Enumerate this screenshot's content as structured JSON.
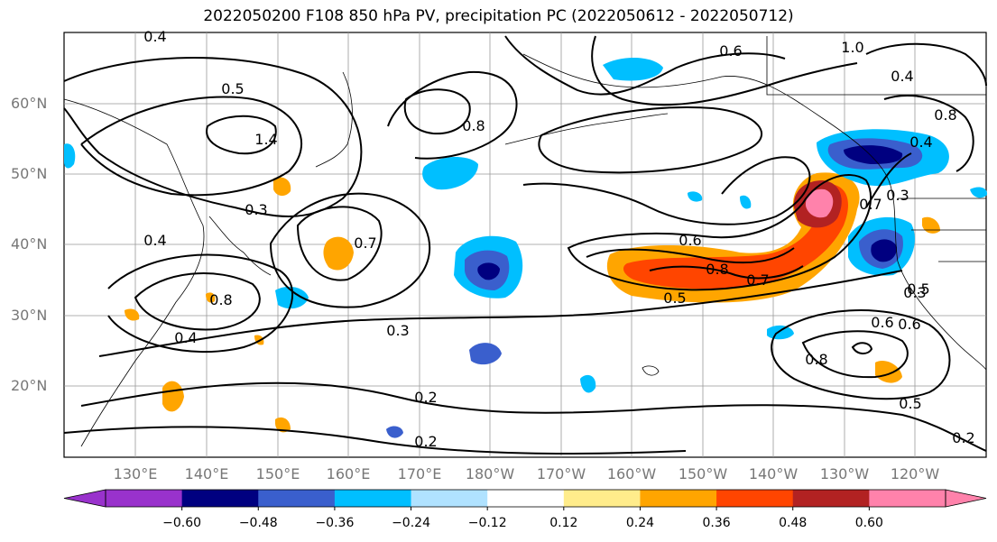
{
  "title": "2022050200 F108 850 hPa PV, precipitation PC (2022050612 - 2022050712)",
  "map": {
    "lat_labels": [
      "60°N",
      "50°N",
      "40°N",
      "30°N",
      "20°N"
    ],
    "lon_labels": [
      "130°E",
      "140°E",
      "150°E",
      "160°E",
      "170°E",
      "180°W",
      "170°W",
      "160°W",
      "150°W",
      "140°W",
      "130°W",
      "120°W"
    ],
    "contour_labels": [
      "0.4",
      "0.5",
      "0.6",
      "1.0",
      "0.4",
      "0.8",
      "0.7",
      "0.6",
      "0.8",
      "0.7",
      "0.5",
      "0.3",
      "0.2",
      "0.2",
      "0.3",
      "0.4",
      "0.8",
      "0.6",
      "0.4",
      "0.3",
      "0.5",
      "0.6",
      "0.8",
      "0.5",
      "0.2",
      "0.7",
      "0.3",
      "0.4",
      "0.8",
      "1.4"
    ],
    "grid": true
  },
  "colorbar": {
    "ticks": [
      "−0.60",
      "−0.48",
      "−0.36",
      "−0.24",
      "−0.12",
      "0.12",
      "0.24",
      "0.36",
      "0.48",
      "0.60"
    ],
    "colors": [
      "#9932cc",
      "#000080",
      "#3a5fcd",
      "#00bfff",
      "#b0e2ff",
      "#ffffff",
      "#ffec8b",
      "#ffa500",
      "#ff4500",
      "#b22222",
      "#ff82ab"
    ],
    "extend": "both"
  }
}
